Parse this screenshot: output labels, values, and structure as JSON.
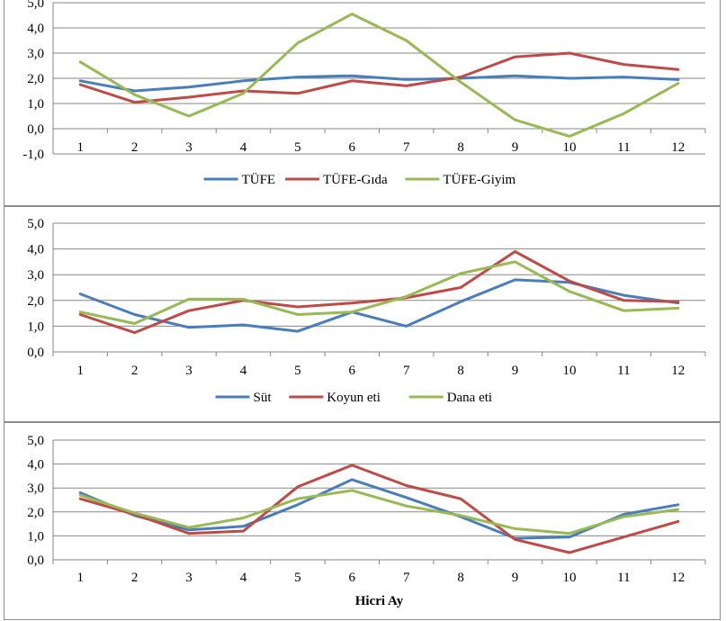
{
  "chart_data": [
    {
      "type": "line",
      "x": [
        1,
        2,
        3,
        4,
        5,
        6,
        7,
        8,
        9,
        10,
        11,
        12
      ],
      "ylim": [
        -1,
        5
      ],
      "y_ticks": [
        "-1,0",
        "0,0",
        "1,0",
        "2,0",
        "3,0",
        "4,0",
        "5,0"
      ],
      "xlabel": "",
      "grid": "horizontal",
      "legend_position": "bottom",
      "series": [
        {
          "name": "TÜFE",
          "color": "#4a7ebb",
          "values": [
            1.9,
            1.5,
            1.65,
            1.9,
            2.05,
            2.1,
            1.95,
            2.0,
            2.1,
            2.0,
            2.05,
            1.95
          ]
        },
        {
          "name": "TÜFE-Gıda",
          "color": "#be4b48",
          "values": [
            1.75,
            1.05,
            1.25,
            1.5,
            1.4,
            1.9,
            1.7,
            2.05,
            2.85,
            3.0,
            2.55,
            2.35
          ]
        },
        {
          "name": "TÜFE-Giyim",
          "color": "#98b954",
          "values": [
            2.65,
            1.35,
            0.5,
            1.4,
            3.4,
            4.55,
            3.5,
            1.85,
            0.35,
            -0.3,
            0.6,
            1.8
          ]
        }
      ]
    },
    {
      "type": "line",
      "x": [
        1,
        2,
        3,
        4,
        5,
        6,
        7,
        8,
        9,
        10,
        11,
        12
      ],
      "ylim": [
        0,
        5
      ],
      "y_ticks": [
        "0,0",
        "1,0",
        "2,0",
        "3,0",
        "4,0",
        "5,0"
      ],
      "xlabel": "",
      "grid": "horizontal",
      "legend_position": "bottom",
      "series": [
        {
          "name": "Süt",
          "color": "#4a7ebb",
          "values": [
            2.25,
            1.45,
            0.95,
            1.05,
            0.8,
            1.55,
            1.0,
            1.95,
            2.8,
            2.7,
            2.2,
            1.9
          ]
        },
        {
          "name": "Koyun eti",
          "color": "#be4b48",
          "values": [
            1.45,
            0.75,
            1.6,
            2.0,
            1.75,
            1.9,
            2.1,
            2.5,
            3.9,
            2.75,
            2.0,
            1.95
          ]
        },
        {
          "name": "Dana eti",
          "color": "#98b954",
          "values": [
            1.55,
            1.1,
            2.05,
            2.05,
            1.45,
            1.55,
            2.15,
            3.05,
            3.5,
            2.35,
            1.6,
            1.7
          ]
        }
      ]
    },
    {
      "type": "line",
      "x": [
        1,
        2,
        3,
        4,
        5,
        6,
        7,
        8,
        9,
        10,
        11,
        12
      ],
      "ylim": [
        0,
        5
      ],
      "y_ticks": [
        "0,0",
        "1,0",
        "2,0",
        "3,0",
        "4,0",
        "5,0"
      ],
      "xlabel": "Hicri Ay",
      "grid": "horizontal",
      "legend_position": "none",
      "series": [
        {
          "color": "#4a7ebb",
          "values": [
            2.8,
            1.85,
            1.25,
            1.4,
            2.3,
            3.35,
            2.6,
            1.8,
            0.9,
            0.95,
            1.9,
            2.3
          ]
        },
        {
          "color": "#be4b48",
          "values": [
            2.55,
            1.9,
            1.1,
            1.2,
            3.05,
            3.95,
            3.1,
            2.55,
            0.85,
            0.3,
            0.95,
            1.6
          ]
        },
        {
          "color": "#98b954",
          "values": [
            2.7,
            1.95,
            1.35,
            1.75,
            2.55,
            2.9,
            2.25,
            1.85,
            1.3,
            1.1,
            1.8,
            2.1
          ]
        }
      ]
    }
  ]
}
